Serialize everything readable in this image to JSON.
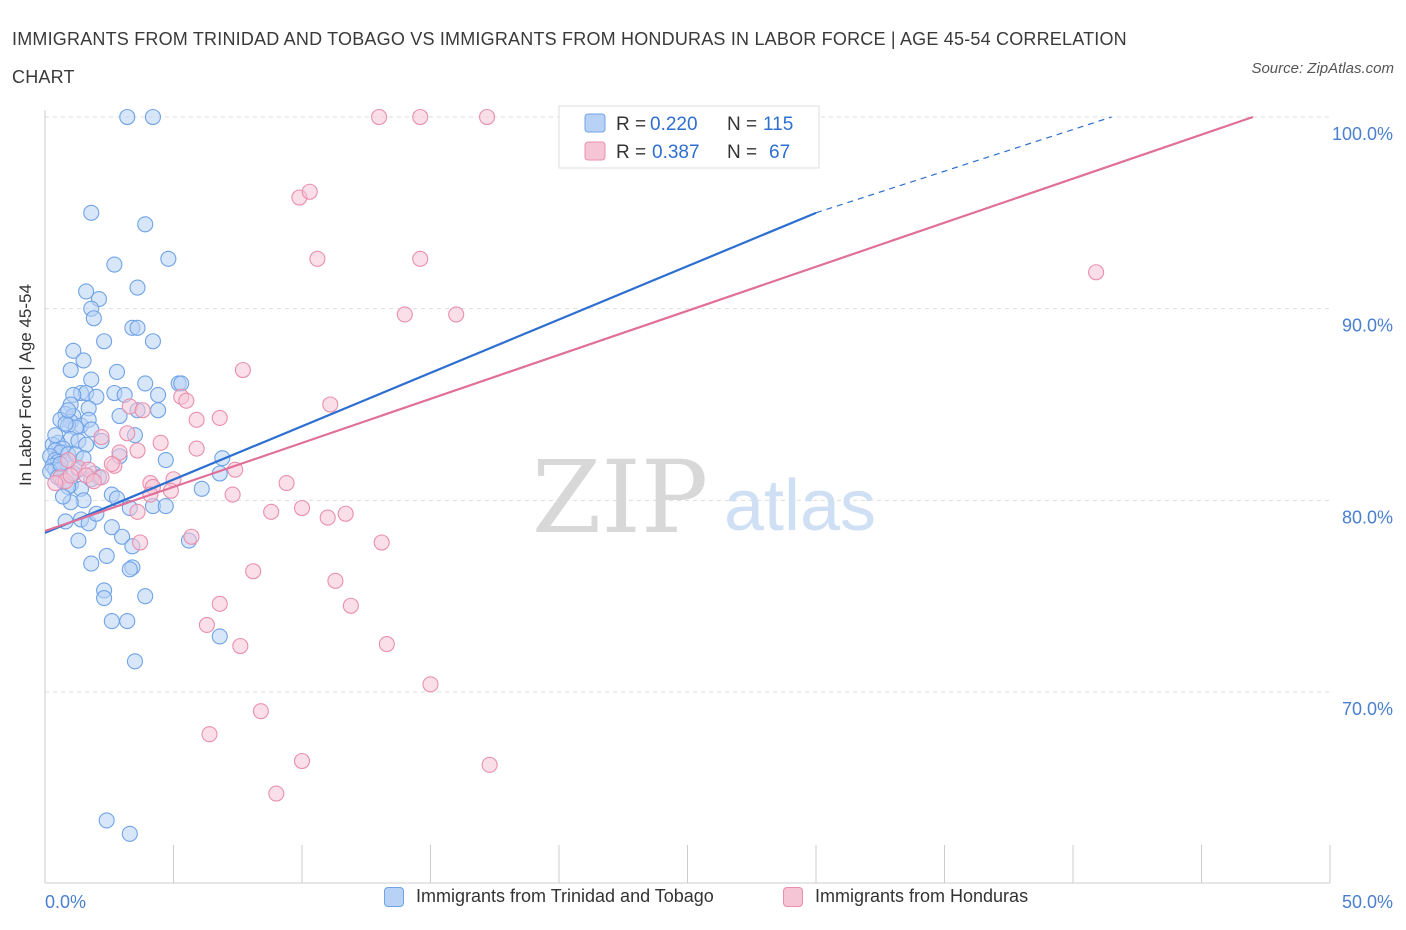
{
  "header": {
    "title": "IMMIGRANTS FROM TRINIDAD AND TOBAGO VS IMMIGRANTS FROM HONDURAS IN LABOR FORCE | AGE 45-54 CORRELATION CHART",
    "source": "Source: ZipAtlas.com"
  },
  "watermark": {
    "zip": "ZIP",
    "atlas": "atlas"
  },
  "colors": {
    "blue": "#6fa3e6",
    "blue_fill": "#b8d2f5",
    "blue_line": "#2d6fd1",
    "pink": "#e98fad",
    "pink_fill": "#f6c5d5",
    "pink_line": "#e07098",
    "axis_text": "#4a7fd0",
    "grid": "#dddddd"
  },
  "legend_top": {
    "rows": [
      {
        "r_label": "R = ",
        "r_value": "0.220",
        "n_label": "N = ",
        "n_value": "115"
      },
      {
        "r_label": "R = ",
        "r_value": "0.387",
        "n_label": "N = ",
        "n_value": "67"
      }
    ]
  },
  "chart_data": {
    "type": "scatter",
    "title": "IMMIGRANTS FROM TRINIDAD AND TOBAGO VS IMMIGRANTS FROM HONDURAS IN LABOR FORCE | AGE 45-54 CORRELATION CHART",
    "xlabel": "",
    "ylabel": "In Labor Force | Age 45-54",
    "xlim": [
      0,
      50
    ],
    "ylim": [
      60,
      100
    ],
    "x_tick_labels": [
      "0.0%",
      "50.0%"
    ],
    "y_tick_labels": [
      "100.0%",
      "90.0%",
      "80.0%",
      "70.0%"
    ],
    "y_ticks": [
      100,
      90,
      80,
      70
    ],
    "grid": true,
    "legend_position": "bottom",
    "series": [
      {
        "name": "Immigrants from Trinidad and Tobago",
        "color": "blue",
        "R": 0.22,
        "N": 115,
        "trend": {
          "x": [
            0,
            30
          ],
          "y": [
            78.3,
            95.0
          ],
          "dashed_to": [
            41.5,
            100.0
          ]
        },
        "points": [
          [
            3.2,
            100
          ],
          [
            4.2,
            100
          ],
          [
            1.8,
            95
          ],
          [
            3.9,
            94.4
          ],
          [
            4.8,
            92.6
          ],
          [
            2.7,
            92.3
          ],
          [
            3.6,
            91.1
          ],
          [
            1.6,
            90.9
          ],
          [
            2.1,
            90.5
          ],
          [
            1.8,
            90
          ],
          [
            1.9,
            89.5
          ],
          [
            3.4,
            89
          ],
          [
            3.6,
            89
          ],
          [
            4.2,
            88.3
          ],
          [
            2.3,
            88.3
          ],
          [
            1.1,
            87.8
          ],
          [
            1.5,
            87.3
          ],
          [
            1.0,
            86.8
          ],
          [
            2.8,
            86.7
          ],
          [
            1.8,
            86.3
          ],
          [
            5.2,
            86.1
          ],
          [
            5.3,
            86.1
          ],
          [
            3.9,
            86.1
          ],
          [
            1.4,
            85.6
          ],
          [
            1.6,
            85.6
          ],
          [
            2.7,
            85.6
          ],
          [
            3.1,
            85.5
          ],
          [
            4.4,
            85.5
          ],
          [
            1.1,
            85.5
          ],
          [
            2.0,
            85.4
          ],
          [
            1.0,
            85.0
          ],
          [
            1.7,
            84.8
          ],
          [
            4.4,
            84.7
          ],
          [
            0.8,
            84.5
          ],
          [
            1.1,
            84.4
          ],
          [
            2.9,
            84.4
          ],
          [
            0.6,
            84.2
          ],
          [
            1.0,
            84.1
          ],
          [
            1.4,
            83.9
          ],
          [
            1.7,
            84.2
          ],
          [
            0.9,
            83.9
          ],
          [
            1.2,
            83.8
          ],
          [
            1.8,
            83.7
          ],
          [
            3.5,
            83.4
          ],
          [
            1.0,
            83.2
          ],
          [
            1.3,
            83.1
          ],
          [
            0.5,
            83.0
          ],
          [
            0.3,
            82.9
          ],
          [
            0.7,
            82.7
          ],
          [
            1.6,
            82.9
          ],
          [
            0.4,
            82.6
          ],
          [
            0.6,
            82.5
          ],
          [
            0.9,
            82.4
          ],
          [
            0.2,
            82.3
          ],
          [
            0.4,
            82.1
          ],
          [
            0.5,
            82.0
          ],
          [
            0.8,
            82.0
          ],
          [
            4.7,
            82.1
          ],
          [
            6.9,
            82.2
          ],
          [
            0.3,
            81.8
          ],
          [
            0.4,
            81.6
          ],
          [
            0.6,
            81.6
          ],
          [
            0.2,
            81.5
          ],
          [
            1.3,
            81.6
          ],
          [
            1.9,
            81.4
          ],
          [
            2.1,
            81.2
          ],
          [
            6.8,
            81.4
          ],
          [
            0.5,
            81.2
          ],
          [
            0.7,
            81.0
          ],
          [
            1.0,
            80.8
          ],
          [
            1.4,
            80.6
          ],
          [
            0.9,
            80.7
          ],
          [
            6.1,
            80.6
          ],
          [
            2.6,
            80.3
          ],
          [
            2.8,
            80.1
          ],
          [
            1.5,
            80.0
          ],
          [
            1.0,
            79.9
          ],
          [
            4.2,
            79.7
          ],
          [
            4.7,
            79.7
          ],
          [
            3.3,
            79.6
          ],
          [
            1.4,
            79.0
          ],
          [
            0.8,
            78.9
          ],
          [
            1.7,
            78.8
          ],
          [
            2.6,
            78.6
          ],
          [
            3.0,
            78.1
          ],
          [
            1.3,
            77.9
          ],
          [
            5.6,
            77.9
          ],
          [
            3.4,
            77.6
          ],
          [
            2.4,
            77.1
          ],
          [
            1.8,
            76.7
          ],
          [
            3.4,
            76.5
          ],
          [
            3.3,
            76.4
          ],
          [
            2.3,
            75.3
          ],
          [
            3.9,
            75.0
          ],
          [
            2.3,
            74.9
          ],
          [
            2.6,
            73.7
          ],
          [
            3.2,
            73.7
          ],
          [
            6.8,
            72.9
          ],
          [
            3.5,
            71.6
          ],
          [
            2.4,
            63.3
          ],
          [
            3.3,
            62.6
          ],
          [
            0.8,
            84.0
          ],
          [
            1.2,
            82.4
          ],
          [
            0.6,
            81.9
          ],
          [
            1.5,
            82.2
          ],
          [
            2.2,
            83.1
          ],
          [
            0.7,
            80.2
          ],
          [
            2.0,
            79.3
          ],
          [
            1.1,
            81.4
          ],
          [
            0.9,
            84.7
          ],
          [
            3.6,
            84.7
          ],
          [
            2.9,
            82.3
          ],
          [
            1.8,
            81.1
          ],
          [
            0.4,
            83.4
          ]
        ]
      },
      {
        "name": "Immigrants from Honduras",
        "color": "pink",
        "R": 0.387,
        "N": 67,
        "trend": {
          "x": [
            0,
            47
          ],
          "y": [
            78.4,
            100.0
          ]
        },
        "points": [
          [
            13,
            100
          ],
          [
            14.6,
            100
          ],
          [
            17.2,
            100
          ],
          [
            23.8,
            100
          ],
          [
            27.3,
            100
          ],
          [
            9.9,
            95.8
          ],
          [
            10.3,
            96.1
          ],
          [
            10.6,
            92.6
          ],
          [
            14.6,
            92.6
          ],
          [
            40.9,
            91.9
          ],
          [
            14.0,
            89.7
          ],
          [
            16.0,
            89.7
          ],
          [
            7.7,
            86.8
          ],
          [
            5.3,
            85.4
          ],
          [
            5.5,
            85.2
          ],
          [
            11.1,
            85.0
          ],
          [
            3.3,
            84.9
          ],
          [
            3.8,
            84.7
          ],
          [
            6.8,
            84.3
          ],
          [
            5.9,
            84.2
          ],
          [
            3.2,
            83.5
          ],
          [
            2.2,
            83.3
          ],
          [
            4.5,
            83.0
          ],
          [
            3.6,
            82.6
          ],
          [
            5.9,
            82.7
          ],
          [
            2.9,
            82.5
          ],
          [
            2.7,
            81.8
          ],
          [
            1.3,
            81.7
          ],
          [
            1.7,
            81.6
          ],
          [
            1.6,
            81.3
          ],
          [
            0.6,
            81.2
          ],
          [
            0.8,
            81.0
          ],
          [
            1.0,
            81.3
          ],
          [
            2.2,
            81.2
          ],
          [
            7.4,
            81.6
          ],
          [
            5.0,
            81.1
          ],
          [
            4.1,
            80.9
          ],
          [
            4.2,
            80.7
          ],
          [
            9.4,
            80.9
          ],
          [
            4.9,
            80.5
          ],
          [
            4.1,
            80.3
          ],
          [
            7.3,
            80.3
          ],
          [
            3.6,
            79.4
          ],
          [
            8.8,
            79.4
          ],
          [
            10.0,
            79.6
          ],
          [
            11.0,
            79.1
          ],
          [
            11.7,
            79.3
          ],
          [
            5.7,
            78.1
          ],
          [
            3.7,
            77.8
          ],
          [
            13.1,
            77.8
          ],
          [
            8.1,
            76.3
          ],
          [
            11.3,
            75.8
          ],
          [
            6.8,
            74.6
          ],
          [
            11.9,
            74.5
          ],
          [
            6.3,
            73.5
          ],
          [
            7.6,
            72.4
          ],
          [
            13.3,
            72.5
          ],
          [
            15.0,
            70.4
          ],
          [
            8.4,
            69.0
          ],
          [
            6.4,
            67.8
          ],
          [
            10.0,
            66.4
          ],
          [
            17.3,
            66.2
          ],
          [
            9.0,
            64.7
          ],
          [
            0.4,
            80.9
          ],
          [
            0.9,
            82.1
          ],
          [
            2.6,
            81.9
          ],
          [
            1.9,
            81.0
          ]
        ]
      }
    ]
  },
  "legend_bottom": {
    "items": [
      {
        "label": "Immigrants from Trinidad and Tobago"
      },
      {
        "label": "Immigrants from Honduras"
      }
    ]
  }
}
